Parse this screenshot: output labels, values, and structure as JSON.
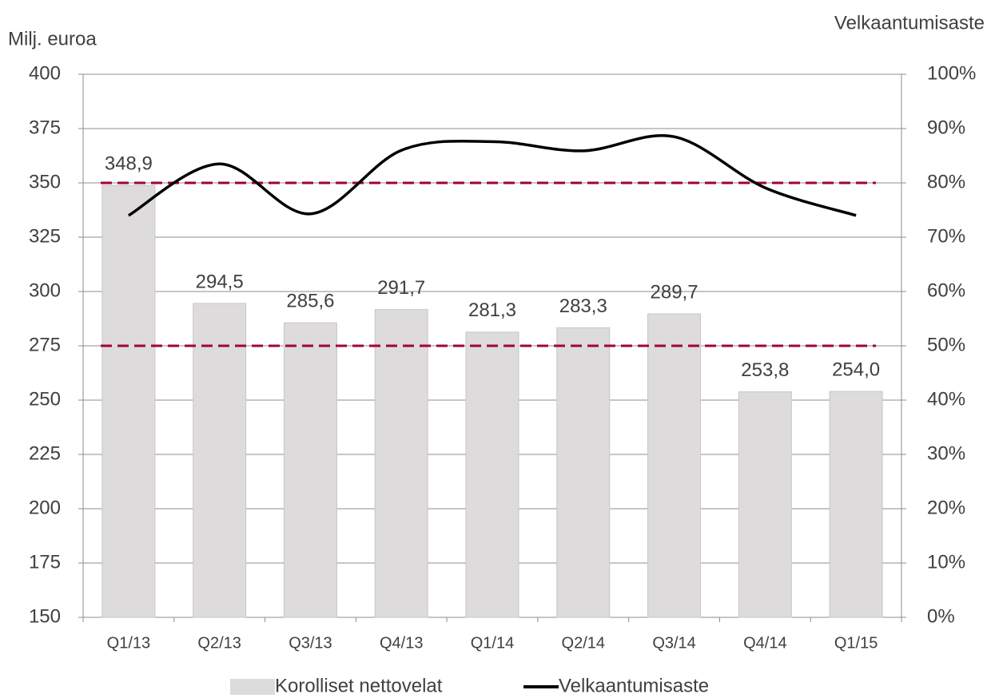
{
  "chart_data": {
    "type": "bar-line",
    "ylabel": "Milj. euroa",
    "y2label": "Velkaantumisaste",
    "categories": [
      "Q1/13",
      "Q2/13",
      "Q3/13",
      "Q4/13",
      "Q1/14",
      "Q2/14",
      "Q3/14",
      "Q4/14",
      "Q1/15"
    ],
    "series": [
      {
        "name": "Korolliset nettovelat",
        "type": "bar",
        "color": "#dddbdb",
        "values": [
          348.9,
          294.5,
          285.6,
          291.7,
          281.3,
          283.3,
          289.7,
          253.8,
          254.0
        ],
        "value_labels": [
          "348,9",
          "294,5",
          "285,6",
          "291,7",
          "281,3",
          "283,3",
          "289,7",
          "253,8",
          "254,0"
        ]
      },
      {
        "name": "Velkaantumisaste",
        "type": "line",
        "axis": "y2",
        "color": "#000000",
        "values": [
          74.0,
          83.5,
          74.3,
          86.0,
          87.6,
          85.9,
          88.5,
          79.1,
          74.0
        ]
      }
    ],
    "reference_lines": {
      "axis": "y2",
      "color": "#a0003c",
      "values": [
        80,
        50
      ]
    },
    "ylim": [
      150,
      400
    ],
    "yticks": [
      150,
      175,
      200,
      225,
      250,
      275,
      300,
      325,
      350,
      375,
      400
    ],
    "y2lim": [
      0,
      100
    ],
    "y2ticks": [
      {
        "value": 0,
        "label": "0%"
      },
      {
        "value": 10,
        "label": "10%"
      },
      {
        "value": 20,
        "label": "20%"
      },
      {
        "value": 30,
        "label": "30%"
      },
      {
        "value": 40,
        "label": "40%"
      },
      {
        "value": 50,
        "label": "50%"
      },
      {
        "value": 60,
        "label": "60%"
      },
      {
        "value": 70,
        "label": "70%"
      },
      {
        "value": 80,
        "label": "80%"
      },
      {
        "value": 90,
        "label": "90%"
      },
      {
        "value": 100,
        "label": "100%"
      }
    ],
    "grid": true,
    "legend": "bottom"
  }
}
